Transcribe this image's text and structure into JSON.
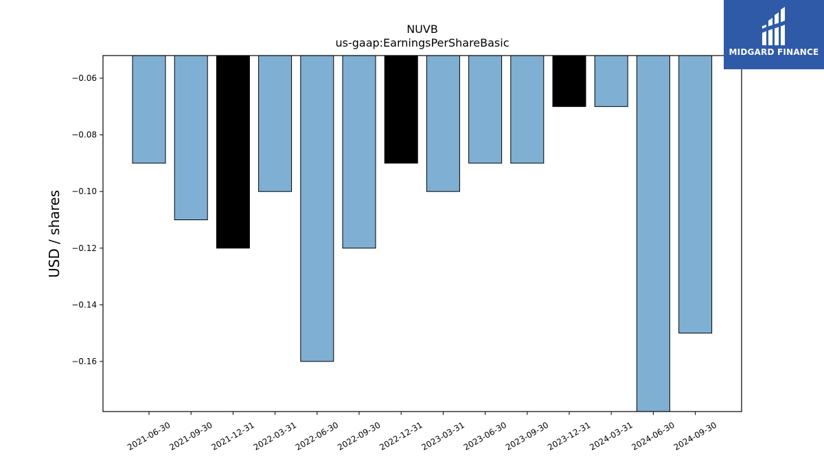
{
  "brand": {
    "name": "MIDGARD FINANCE",
    "logo_icon": "midgard-logo-icon",
    "background": "#2f5aa8"
  },
  "chart_data": {
    "type": "bar",
    "title": "NUVB",
    "subtitle": "us-gaap:EarningsPerShareBasic",
    "xlabel": "",
    "ylabel": "USD / shares",
    "categories": [
      "2021-06-30",
      "2021-09-30",
      "2021-12-31",
      "2022-03-31",
      "2022-06-30",
      "2022-09-30",
      "2022-12-31",
      "2023-03-31",
      "2023-06-30",
      "2023-09-30",
      "2023-12-31",
      "2024-03-31",
      "2024-06-30",
      "2024-09-30"
    ],
    "values": [
      -0.09,
      -0.11,
      -0.12,
      -0.1,
      -0.16,
      -0.12,
      -0.09,
      -0.1,
      -0.09,
      -0.09,
      -0.07,
      -0.07,
      -0.18,
      -0.15
    ],
    "bar_colors": [
      "#7fafd3",
      "#7fafd3",
      "#000000",
      "#7fafd3",
      "#7fafd3",
      "#7fafd3",
      "#000000",
      "#7fafd3",
      "#7fafd3",
      "#7fafd3",
      "#000000",
      "#7fafd3",
      "#7fafd3",
      "#7fafd3"
    ],
    "ylim": [
      -0.1777,
      -0.052
    ],
    "yticks": [
      -0.06,
      -0.08,
      -0.1,
      -0.12,
      -0.14,
      -0.16
    ],
    "ytick_labels": [
      "−0.06",
      "−0.08",
      "−0.10",
      "−0.12",
      "−0.14",
      "−0.16"
    ],
    "grid": false,
    "legend": "none"
  }
}
